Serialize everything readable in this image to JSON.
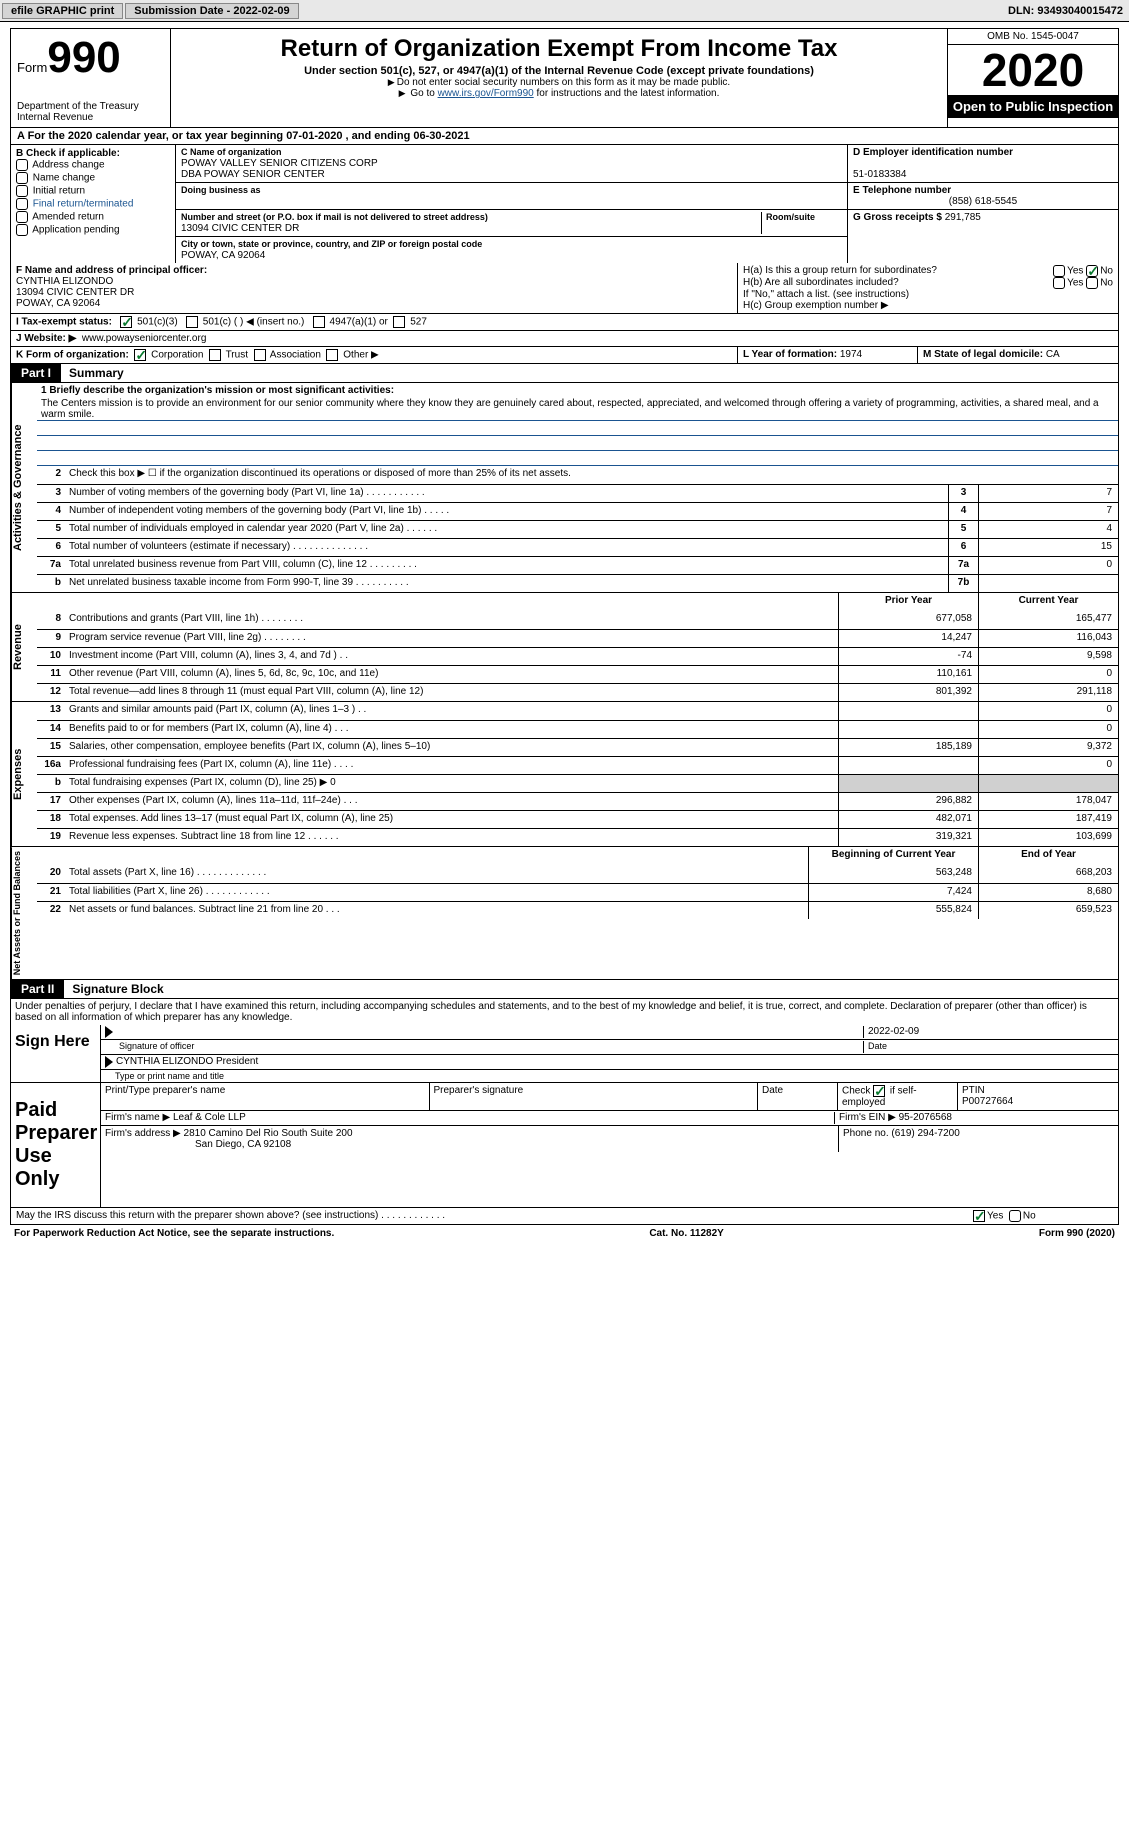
{
  "topbar": {
    "efile": "efile GRAPHIC print",
    "submission_label": "Submission Date - ",
    "submission_date": "2022-02-09",
    "dln_label": "DLN: ",
    "dln": "93493040015472"
  },
  "header": {
    "form_word": "Form",
    "form_num": "990",
    "dept1": "Department of the Treasury",
    "dept2": "Internal Revenue",
    "title": "Return of Organization Exempt From Income Tax",
    "subtitle": "Under section 501(c), 527, or 4947(a)(1) of the Internal Revenue Code (except private foundations)",
    "note1": "Do not enter social security numbers on this form as it may be made public.",
    "note2_a": "Go to ",
    "note2_link": "www.irs.gov/Form990",
    "note2_b": " for instructions and the latest information.",
    "omb": "OMB No. 1545-0047",
    "year": "2020",
    "open": "Open to Public Inspection"
  },
  "period": "A For the 2020 calendar year, or tax year beginning 07-01-2020   , and ending 06-30-2021",
  "B": {
    "label": "B Check if applicable:",
    "items": [
      "Address change",
      "Name change",
      "Initial return",
      "Final return/terminated",
      "Amended return",
      "Application pending"
    ]
  },
  "C": {
    "name_lbl": "C Name of organization",
    "name1": "POWAY VALLEY SENIOR CITIZENS CORP",
    "name2": "DBA POWAY SENIOR CENTER",
    "dba_lbl": "Doing business as",
    "addr_lbl": "Number and street (or P.O. box if mail is not delivered to street address)",
    "room_lbl": "Room/suite",
    "addr": "13094 CIVIC CENTER DR",
    "city_lbl": "City or town, state or province, country, and ZIP or foreign postal code",
    "city": "POWAY, CA  92064"
  },
  "D": {
    "ein_lbl": "D Employer identification number",
    "ein": "51-0183384",
    "tel_lbl": "E Telephone number",
    "tel": "(858) 618-5545",
    "gross_lbl": "G Gross receipts $ ",
    "gross": "291,785"
  },
  "F": {
    "lbl": "F  Name and address of principal officer:",
    "name": "CYNTHIA ELIZONDO",
    "addr1": "13094 CIVIC CENTER DR",
    "addr2": "POWAY, CA  92064"
  },
  "H": {
    "a": "H(a)  Is this a group return for subordinates?",
    "b": "H(b)  Are all subordinates included?",
    "b2": "If \"No,\" attach a list. (see instructions)",
    "c": "H(c)  Group exemption number ▶",
    "yes": "Yes",
    "no": "No"
  },
  "I": {
    "lbl": "I  Tax-exempt status:",
    "o1": "501(c)(3)",
    "o2": "501(c) (  ) ◀ (insert no.)",
    "o3": "4947(a)(1) or",
    "o4": "527"
  },
  "J": {
    "lbl": "J  Website: ▶",
    "val": "www.powayseniorcenter.org"
  },
  "K": {
    "lbl": "K Form of organization:",
    "o1": "Corporation",
    "o2": "Trust",
    "o3": "Association",
    "o4": "Other ▶"
  },
  "L": {
    "lbl": "L Year of formation: ",
    "val": "1974"
  },
  "M": {
    "lbl": "M State of legal domicile: ",
    "val": "CA"
  },
  "part1": {
    "tag": "Part I",
    "title": "Summary"
  },
  "mission": {
    "lbl": "1  Briefly describe the organization's mission or most significant activities:",
    "text": "The Centers mission is to provide an environment for our senior community where they know they are genuinely cared about, respected, appreciated, and welcomed through offering a variety of programming, activities, a shared meal, and a warm smile."
  },
  "gov_rows": [
    {
      "n": "2",
      "t": "Check this box ▶ ☐  if the organization discontinued its operations or disposed of more than 25% of its net assets.",
      "ln": "",
      "v": ""
    },
    {
      "n": "3",
      "t": "Number of voting members of the governing body (Part VI, line 1a)  .  .  .  .  .  .  .  .  .  .  .",
      "ln": "3",
      "v": "7"
    },
    {
      "n": "4",
      "t": "Number of independent voting members of the governing body (Part VI, line 1b)  .  .  .  .  .",
      "ln": "4",
      "v": "7"
    },
    {
      "n": "5",
      "t": "Total number of individuals employed in calendar year 2020 (Part V, line 2a)  .  .  .  .  .  .",
      "ln": "5",
      "v": "4"
    },
    {
      "n": "6",
      "t": "Total number of volunteers (estimate if necessary)  .  .  .  .  .  .  .  .  .  .  .  .  .  .",
      "ln": "6",
      "v": "15"
    },
    {
      "n": "7a",
      "t": "Total unrelated business revenue from Part VIII, column (C), line 12  .  .  .  .  .  .  .  .  .",
      "ln": "7a",
      "v": "0"
    },
    {
      "n": "b",
      "t": "Net unrelated business taxable income from Form 990-T, line 39  .  .  .  .  .  .  .  .  .  .",
      "ln": "7b",
      "v": ""
    }
  ],
  "col_hdr": {
    "py": "Prior Year",
    "cy": "Current Year"
  },
  "rev_rows": [
    {
      "n": "8",
      "t": "Contributions and grants (Part VIII, line 1h)  .  .  .  .  .  .  .  .",
      "py": "677,058",
      "cy": "165,477"
    },
    {
      "n": "9",
      "t": "Program service revenue (Part VIII, line 2g)  .  .  .  .  .  .  .  .",
      "py": "14,247",
      "cy": "116,043"
    },
    {
      "n": "10",
      "t": "Investment income (Part VIII, column (A), lines 3, 4, and 7d )  .  .",
      "py": "-74",
      "cy": "9,598"
    },
    {
      "n": "11",
      "t": "Other revenue (Part VIII, column (A), lines 5, 6d, 8c, 9c, 10c, and 11e)",
      "py": "110,161",
      "cy": "0"
    },
    {
      "n": "12",
      "t": "Total revenue—add lines 8 through 11 (must equal Part VIII, column (A), line 12)",
      "py": "801,392",
      "cy": "291,118"
    }
  ],
  "exp_rows": [
    {
      "n": "13",
      "t": "Grants and similar amounts paid (Part IX, column (A), lines 1–3 )  .  .",
      "py": "",
      "cy": "0"
    },
    {
      "n": "14",
      "t": "Benefits paid to or for members (Part IX, column (A), line 4)  .  .  .",
      "py": "",
      "cy": "0"
    },
    {
      "n": "15",
      "t": "Salaries, other compensation, employee benefits (Part IX, column (A), lines 5–10)",
      "py": "185,189",
      "cy": "9,372"
    },
    {
      "n": "16a",
      "t": "Professional fundraising fees (Part IX, column (A), line 11e)  .  .  .  .",
      "py": "",
      "cy": "0"
    },
    {
      "n": "b",
      "t": "Total fundraising expenses (Part IX, column (D), line 25) ▶ 0",
      "py": "GREY",
      "cy": "GREY"
    },
    {
      "n": "17",
      "t": "Other expenses (Part IX, column (A), lines 11a–11d, 11f–24e)  .  .  .",
      "py": "296,882",
      "cy": "178,047"
    },
    {
      "n": "18",
      "t": "Total expenses. Add lines 13–17 (must equal Part IX, column (A), line 25)",
      "py": "482,071",
      "cy": "187,419"
    },
    {
      "n": "19",
      "t": "Revenue less expenses. Subtract line 18 from line 12  .  .  .  .  .  .",
      "py": "319,321",
      "cy": "103,699"
    }
  ],
  "na_hdr": {
    "by": "Beginning of Current Year",
    "ey": "End of Year"
  },
  "na_rows": [
    {
      "n": "20",
      "t": "Total assets (Part X, line 16)  .  .  .  .  .  .  .  .  .  .  .  .  .",
      "py": "563,248",
      "cy": "668,203"
    },
    {
      "n": "21",
      "t": "Total liabilities (Part X, line 26)  .  .  .  .  .  .  .  .  .  .  .  .",
      "py": "7,424",
      "cy": "8,680"
    },
    {
      "n": "22",
      "t": "Net assets or fund balances. Subtract line 21 from line 20  .  .  .",
      "py": "555,824",
      "cy": "659,523"
    }
  ],
  "part2": {
    "tag": "Part II",
    "title": "Signature Block"
  },
  "penalties": "Under penalties of perjury, I declare that I have examined this return, including accompanying schedules and statements, and to the best of my knowledge and belief, it is true, correct, and complete. Declaration of preparer (other than officer) is based on all information of which preparer has any knowledge.",
  "sign": {
    "side": "Sign Here",
    "sig_lbl": "Signature of officer",
    "date_lbl": "Date",
    "date": "2022-02-09",
    "name": "CYNTHIA ELIZONDO  President",
    "name_lbl": "Type or print name and title"
  },
  "prep": {
    "side": "Paid Preparer Use Only",
    "h1": "Print/Type preparer's name",
    "h2": "Preparer's signature",
    "h3": "Date",
    "h4a": "Check ",
    "h4b": " if self-employed",
    "h5": "PTIN",
    "ptin": "P00727664",
    "firm_lbl": "Firm's name  ▶ ",
    "firm": "Leaf & Cole LLP",
    "ein_lbl": "Firm's EIN ▶ ",
    "ein": "95-2076568",
    "addr_lbl": "Firm's address ▶ ",
    "addr1": "2810 Camino Del Rio South Suite 200",
    "addr2": "San Diego, CA  92108",
    "ph_lbl": "Phone no. ",
    "ph": "(619) 294-7200"
  },
  "discuss": {
    "q": "May the IRS discuss this return with the preparer shown above? (see instructions)  .  .  .  .  .  .  .  .  .  .  .  .",
    "yes": "Yes",
    "no": "No"
  },
  "footer": {
    "l": "For Paperwork Reduction Act Notice, see the separate instructions.",
    "c": "Cat. No. 11282Y",
    "r": "Form 990 (2020)"
  },
  "vlabels": {
    "gov": "Activities & Governance",
    "rev": "Revenue",
    "exp": "Expenses",
    "na": "Net Assets or Fund Balances"
  }
}
